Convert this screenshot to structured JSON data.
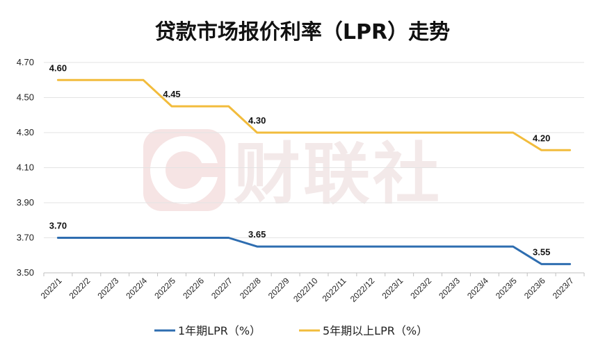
{
  "watermark": {
    "text": "财联社",
    "logo_letter": "C",
    "color": "#f3e6e6"
  },
  "chart_data": {
    "type": "line",
    "title": "贷款市场报价利率（LPR）走势",
    "xlabel": "",
    "ylabel": "",
    "ylim": [
      3.5,
      4.7
    ],
    "yticks": [
      "4.70",
      "4.50",
      "4.30",
      "4.10",
      "3.90",
      "3.70",
      "3.50"
    ],
    "categories": [
      "2022/1",
      "2022/2",
      "2022/3",
      "2022/4",
      "2022/5",
      "2022/6",
      "2022/7",
      "2022/8",
      "2022/9",
      "2022/10",
      "2022/11",
      "2022/12",
      "2023/1",
      "2023/2",
      "2023/3",
      "2023/4",
      "2023/5",
      "2023/6",
      "2023/7"
    ],
    "grid": true,
    "legend_position": "bottom",
    "series": [
      {
        "name": "1年期LPR（%）",
        "color": "#2e6db0",
        "values": [
          3.7,
          3.7,
          3.7,
          3.7,
          3.7,
          3.7,
          3.7,
          3.65,
          3.65,
          3.65,
          3.65,
          3.65,
          3.65,
          3.65,
          3.65,
          3.65,
          3.65,
          3.55,
          3.55
        ],
        "labels": [
          {
            "index": 0,
            "text": "3.70"
          },
          {
            "index": 7,
            "text": "3.65"
          },
          {
            "index": 17,
            "text": "3.55"
          }
        ]
      },
      {
        "name": "5年期以上LPR（%）",
        "color": "#f2bc3c",
        "values": [
          4.6,
          4.6,
          4.6,
          4.6,
          4.45,
          4.45,
          4.45,
          4.3,
          4.3,
          4.3,
          4.3,
          4.3,
          4.3,
          4.3,
          4.3,
          4.3,
          4.3,
          4.2,
          4.2
        ],
        "labels": [
          {
            "index": 0,
            "text": "4.60"
          },
          {
            "index": 4,
            "text": "4.45"
          },
          {
            "index": 7,
            "text": "4.30"
          },
          {
            "index": 17,
            "text": "4.20"
          }
        ]
      }
    ]
  }
}
